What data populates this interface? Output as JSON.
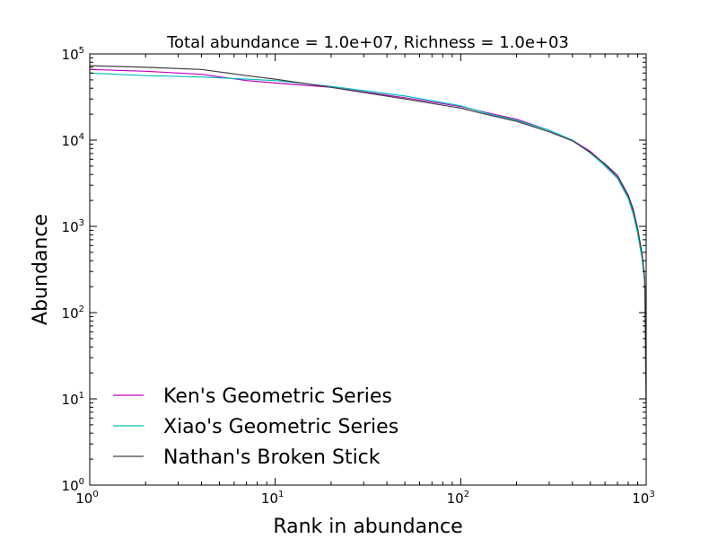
{
  "chart_data": {
    "type": "line",
    "title": "Total abundance = 1.0e+07, Richness = 1.0e+03",
    "xlabel": "Rank in abundance",
    "ylabel": "Abundance",
    "xscale": "log",
    "yscale": "log",
    "xlim": [
      1,
      1000
    ],
    "ylim": [
      1,
      100000
    ],
    "grid": false,
    "legend_position": "lower-left",
    "xticks": [
      {
        "value": 1,
        "base": "10",
        "exp": "0"
      },
      {
        "value": 10,
        "base": "10",
        "exp": "1"
      },
      {
        "value": 100,
        "base": "10",
        "exp": "2"
      },
      {
        "value": 1000,
        "base": "10",
        "exp": "3"
      }
    ],
    "yticks": [
      {
        "value": 1,
        "base": "10",
        "exp": "0"
      },
      {
        "value": 10,
        "base": "10",
        "exp": "1"
      },
      {
        "value": 100,
        "base": "10",
        "exp": "2"
      },
      {
        "value": 1000,
        "base": "10",
        "exp": "3"
      },
      {
        "value": 10000,
        "base": "10",
        "exp": "4"
      },
      {
        "value": 100000,
        "base": "10",
        "exp": "5"
      }
    ],
    "series": [
      {
        "name": "Ken's Geometric Series",
        "color": "#bf00bf",
        "x": [
          1,
          2,
          4,
          7,
          10,
          20,
          50,
          100,
          150,
          200,
          300,
          400,
          500,
          600,
          700,
          800,
          850,
          900,
          950,
          980,
          1000
        ],
        "y": [
          66000,
          63000,
          58000,
          49000,
          46000,
          41000,
          31000,
          24500,
          20000,
          17500,
          13000,
          10000,
          7400,
          5200,
          3700,
          2200,
          1500,
          880,
          450,
          250,
          90
        ]
      },
      {
        "name": "Xiao's Geometric Series",
        "color": "#00bfbf",
        "x": [
          1,
          2,
          4,
          7,
          10,
          20,
          50,
          100,
          150,
          200,
          300,
          400,
          500,
          600,
          700,
          800,
          850,
          900,
          950,
          980,
          1000
        ],
        "y": [
          60000,
          56000,
          54000,
          51000,
          49000,
          42000,
          32500,
          25000,
          19500,
          17000,
          13000,
          10000,
          7100,
          5000,
          3600,
          2100,
          1400,
          830,
          420,
          230,
          95
        ]
      },
      {
        "name": "Nathan's Broken Stick",
        "color": "#404040",
        "x": [
          1,
          2,
          4,
          7,
          10,
          20,
          50,
          100,
          150,
          200,
          300,
          400,
          500,
          600,
          700,
          800,
          850,
          900,
          950,
          980,
          1000
        ],
        "y": [
          73000,
          70000,
          66000,
          56000,
          51000,
          41000,
          30000,
          23500,
          19000,
          16500,
          12500,
          9800,
          7200,
          5300,
          3900,
          2300,
          1600,
          950,
          480,
          260,
          8
        ]
      }
    ]
  }
}
